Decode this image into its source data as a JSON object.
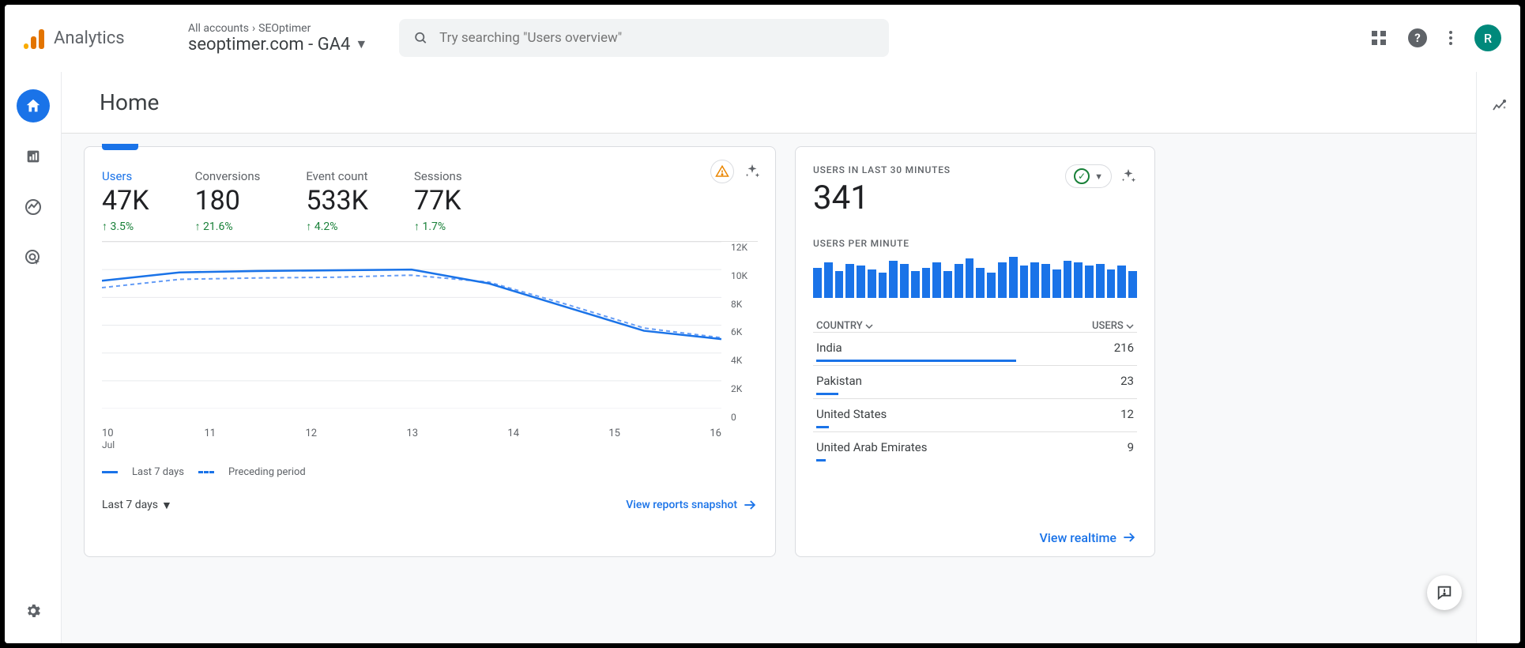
{
  "header": {
    "product_name": "Analytics",
    "breadcrumb_1": "All accounts",
    "breadcrumb_2": "SEOptimer",
    "property_name": "seoptimer.com - GA4",
    "search_placeholder": "Try searching \"Users overview\"",
    "avatar_letter": "R",
    "avatar_bg": "#00897b"
  },
  "page": {
    "title": "Home"
  },
  "overview_card": {
    "metrics": [
      {
        "label": "Users",
        "value": "47K",
        "delta": "3.5%",
        "active": true
      },
      {
        "label": "Conversions",
        "value": "180",
        "delta": "21.6%",
        "active": false
      },
      {
        "label": "Event count",
        "value": "533K",
        "delta": "4.2%",
        "active": false
      },
      {
        "label": "Sessions",
        "value": "77K",
        "delta": "1.7%",
        "active": false
      }
    ],
    "chart": {
      "type": "line",
      "y_ticks": [
        "12K",
        "10K",
        "8K",
        "6K",
        "4K",
        "2K",
        "0"
      ],
      "ylim": [
        0,
        12000
      ],
      "x_labels": [
        "10",
        "11",
        "12",
        "13",
        "14",
        "15",
        "16"
      ],
      "x_month": "Jul",
      "series_solid": [
        9200,
        9800,
        9900,
        9950,
        10000,
        9000,
        7300,
        5600,
        5000
      ],
      "series_dashed": [
        8700,
        9300,
        9400,
        9450,
        9600,
        9100,
        7500,
        5800,
        5100
      ],
      "solid_color": "#1a73e8",
      "dashed_color": "#669df6",
      "grid_color": "#e8eaed"
    },
    "legend_solid": "Last 7 days",
    "legend_dashed": "Preceding period",
    "range_label": "Last 7 days",
    "footer_link": "View reports snapshot"
  },
  "realtime_card": {
    "title": "USERS IN LAST 30 MINUTES",
    "value": "341",
    "subtitle": "USERS PER MINUTE",
    "bars": [
      34,
      40,
      30,
      38,
      36,
      32,
      28,
      42,
      38,
      30,
      34,
      40,
      30,
      38,
      44,
      34,
      28,
      40,
      46,
      36,
      40,
      38,
      32,
      42,
      40,
      36,
      38,
      32,
      36,
      30
    ],
    "bar_color": "#1a73e8",
    "table_head_left": "COUNTRY",
    "table_head_right": "USERS",
    "rows": [
      {
        "country": "India",
        "users": "216",
        "pct": 63
      },
      {
        "country": "Pakistan",
        "users": "23",
        "pct": 7
      },
      {
        "country": "United States",
        "users": "12",
        "pct": 4
      },
      {
        "country": "United Arab Emirates",
        "users": "9",
        "pct": 3
      }
    ],
    "footer_link": "View realtime"
  }
}
